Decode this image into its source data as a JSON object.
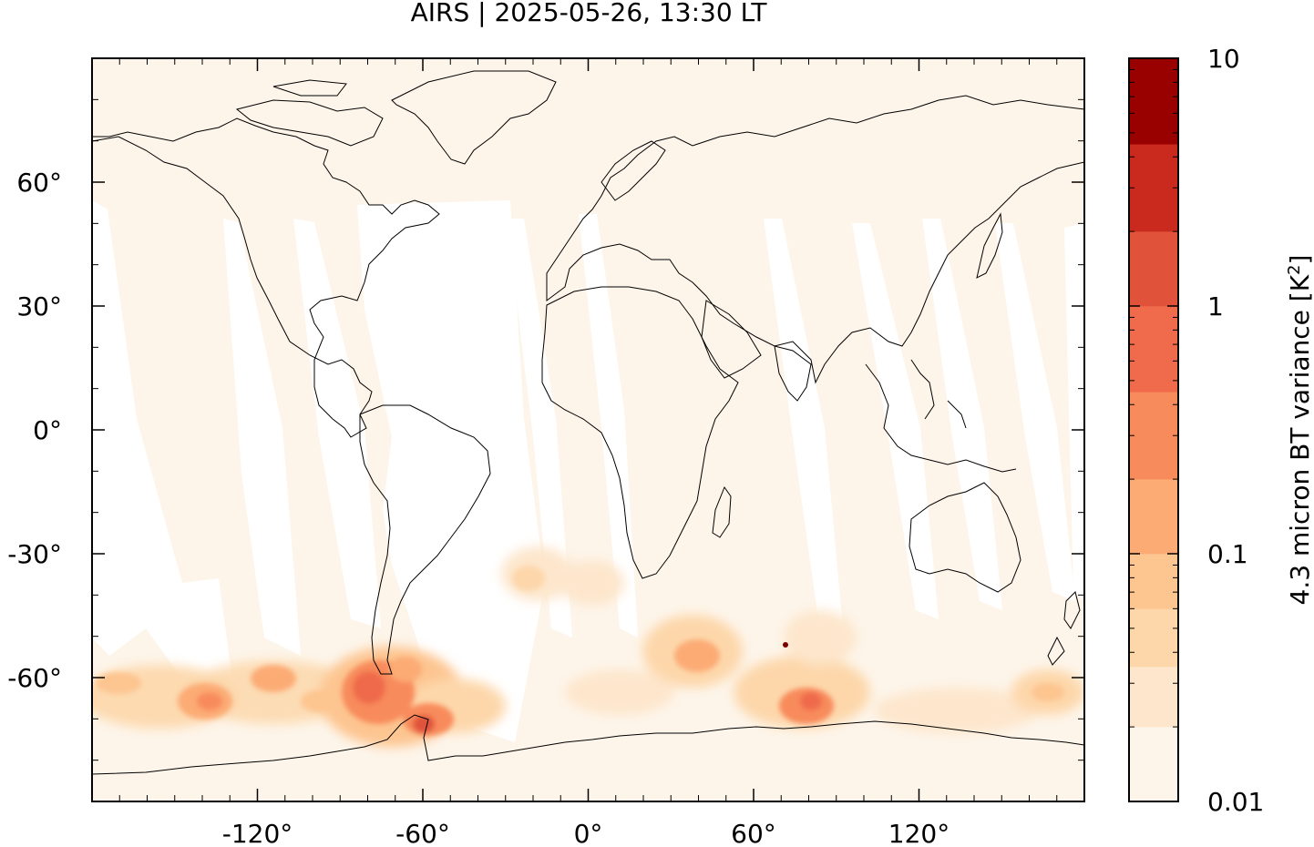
{
  "title": "AIRS | 2025-05-26, 13:30 LT",
  "map": {
    "projection": "plate-carree",
    "lon_range": [
      -180,
      180
    ],
    "lat_range": [
      -90,
      90
    ],
    "x_ticks": [
      {
        "value": -120,
        "label": "-120°"
      },
      {
        "value": -60,
        "label": "-60°"
      },
      {
        "value": 0,
        "label": "0°"
      },
      {
        "value": 60,
        "label": "60°"
      },
      {
        "value": 120,
        "label": "120°"
      }
    ],
    "y_ticks": [
      {
        "value": 60,
        "label": "60°"
      },
      {
        "value": 30,
        "label": "30°"
      },
      {
        "value": 0,
        "label": "0°"
      },
      {
        "value": -30,
        "label": "-30°"
      },
      {
        "value": -60,
        "label": "-60°"
      }
    ],
    "background_color": "#fdf5ea",
    "coastline_color": "#000000"
  },
  "colorbar": {
    "label_main": "4.3 micron BT variance [K",
    "label_sup": "2",
    "label_end": "]",
    "scale": "log",
    "range": [
      0.01,
      10
    ],
    "tick_labels": [
      {
        "value": 10,
        "label": "10"
      },
      {
        "value": 1,
        "label": "1"
      },
      {
        "value": 0.1,
        "label": "0.1"
      },
      {
        "value": 0.01,
        "label": "0.01"
      }
    ],
    "levels": [
      {
        "from": 0.01,
        "to": 0.02,
        "color": "#fdf5ea"
      },
      {
        "from": 0.02,
        "to": 0.035,
        "color": "#fde6cc"
      },
      {
        "from": 0.035,
        "to": 0.06,
        "color": "#fdd7aa"
      },
      {
        "from": 0.06,
        "to": 0.1,
        "color": "#fdc590"
      },
      {
        "from": 0.1,
        "to": 0.2,
        "color": "#fcab74"
      },
      {
        "from": 0.2,
        "to": 0.45,
        "color": "#f88b5c"
      },
      {
        "from": 0.45,
        "to": 1.0,
        "color": "#ef6b4c"
      },
      {
        "from": 1.0,
        "to": 2.0,
        "color": "#e0533a"
      },
      {
        "from": 2.0,
        "to": 4.5,
        "color": "#c92a1d"
      },
      {
        "from": 4.5,
        "to": 10,
        "color": "#990000"
      }
    ]
  }
}
